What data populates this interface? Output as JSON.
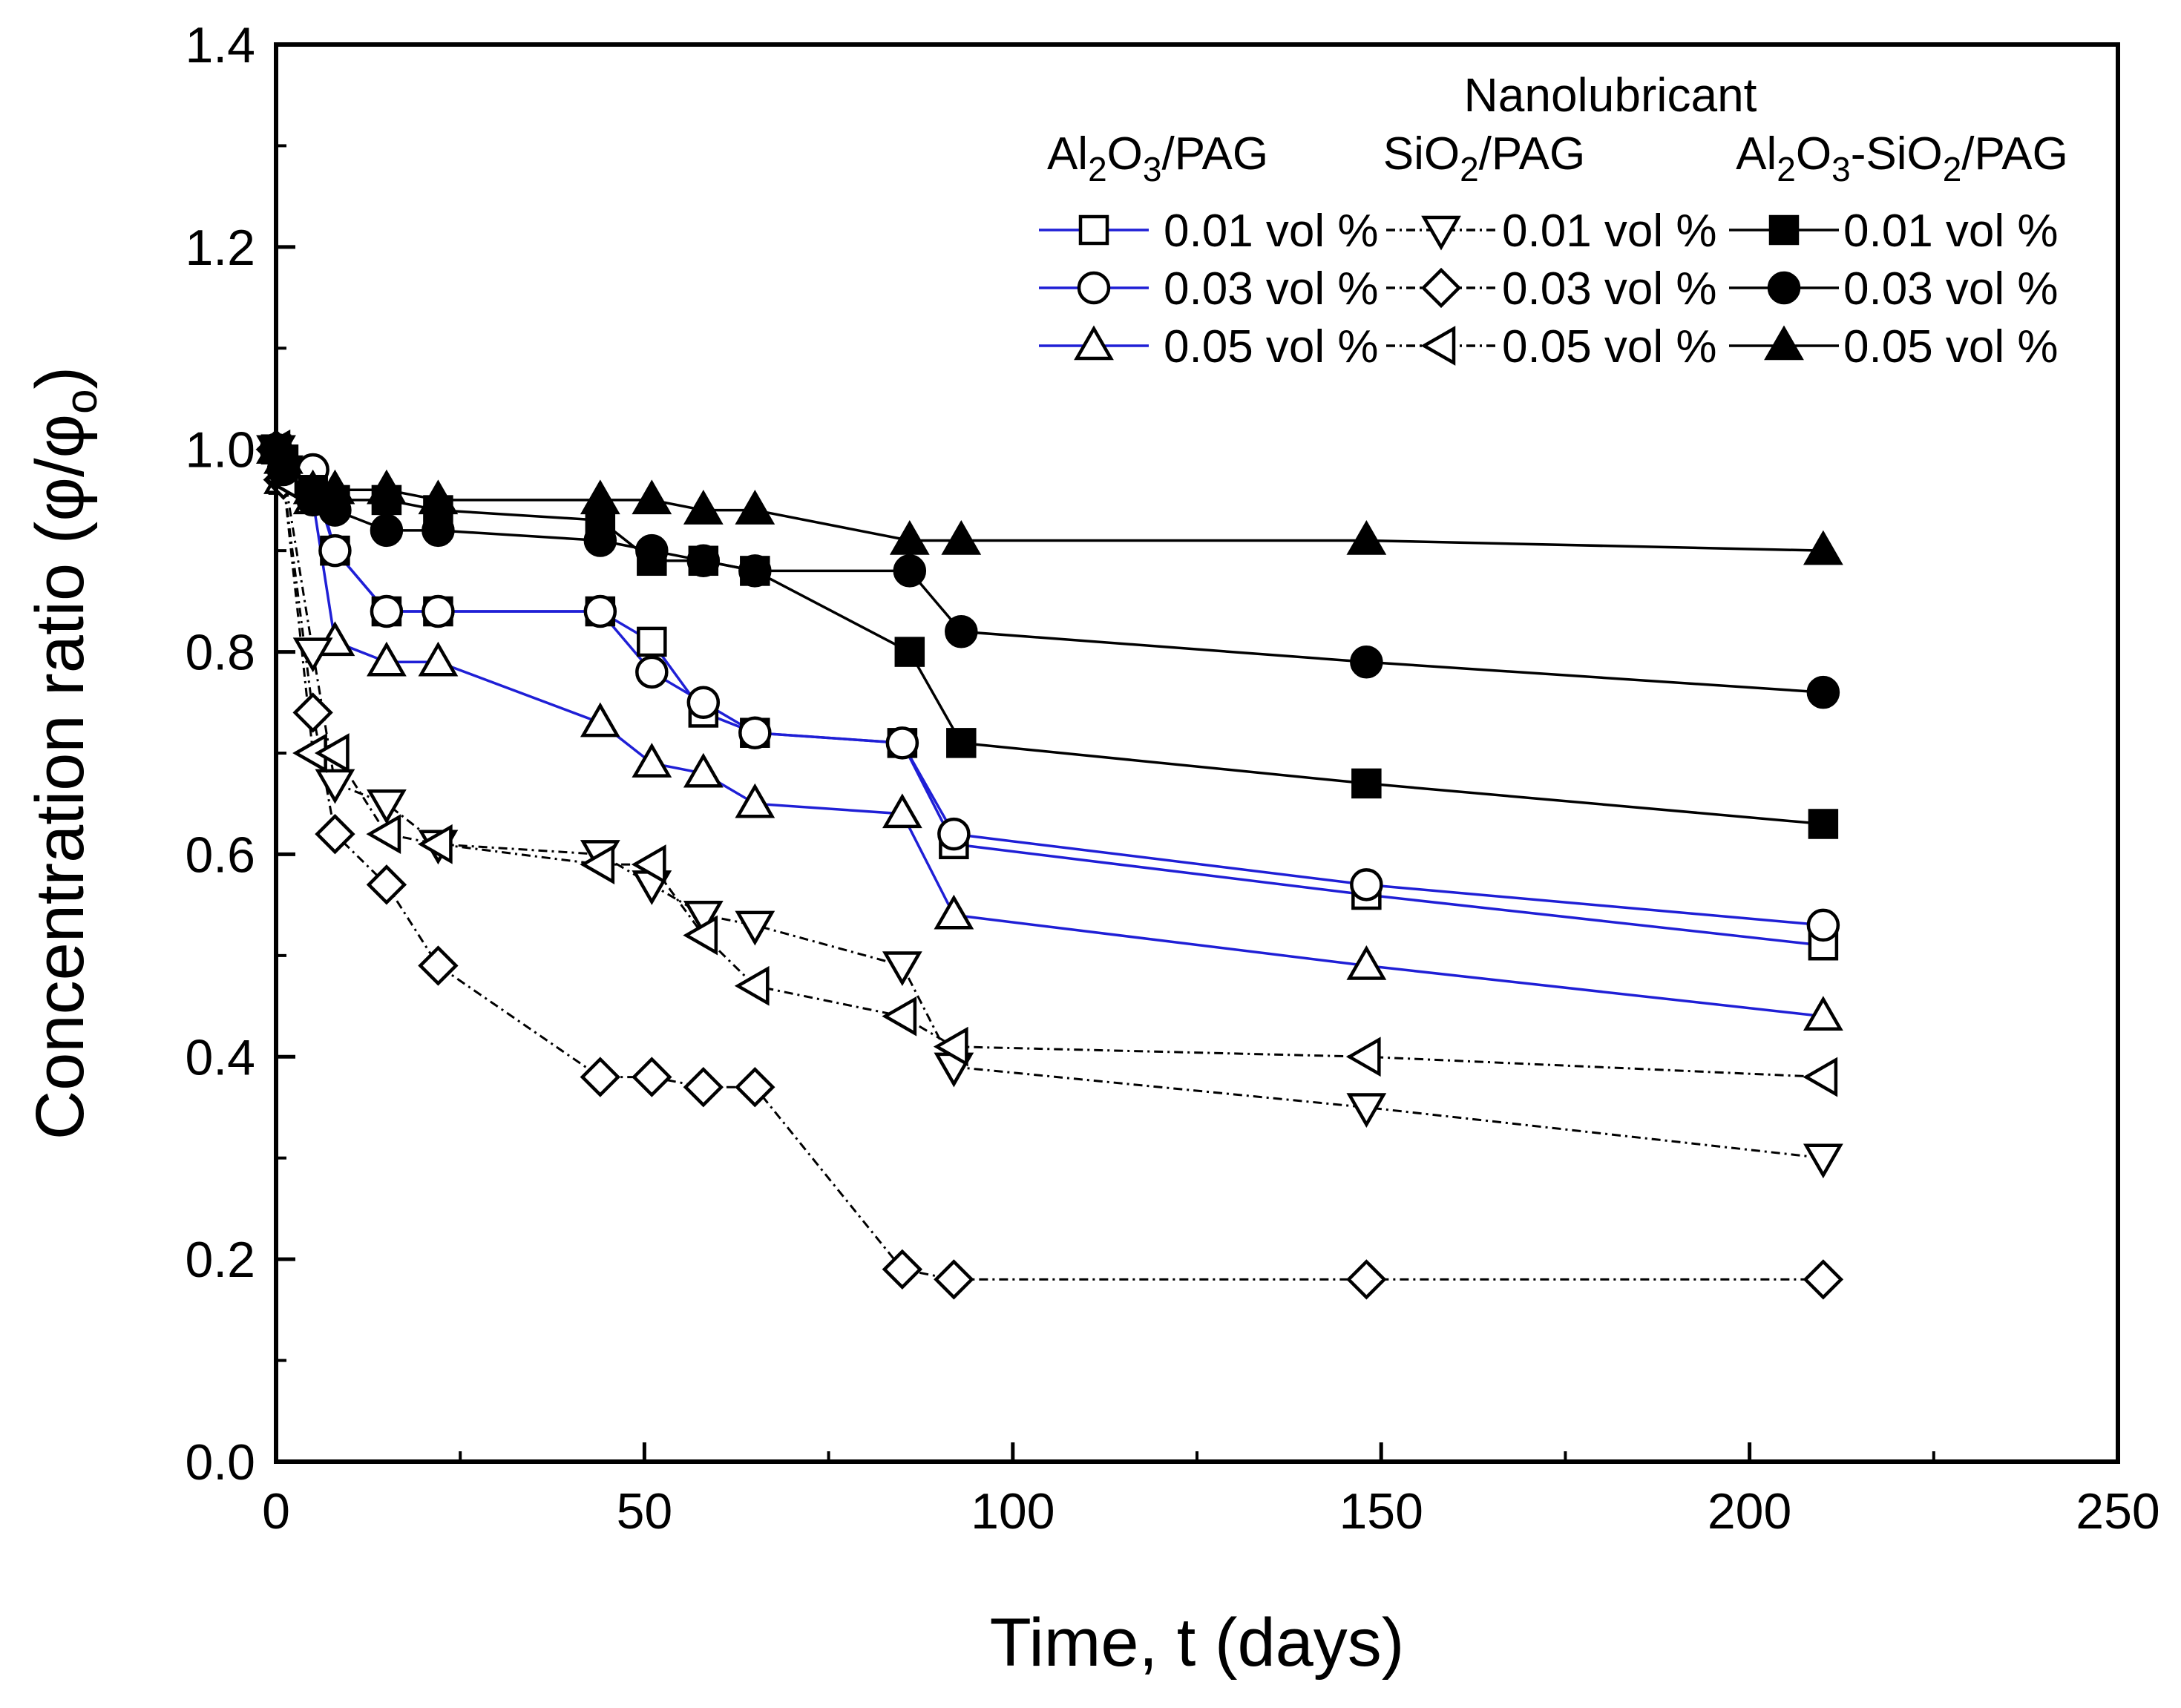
{
  "chart_data": {
    "type": "line",
    "title": "",
    "xlabel": "Time, t (days)",
    "ylabel": "Concentration ratio (φ/φo)",
    "ylabel_parts": {
      "main": "Concentration ratio (φ/φ",
      "sub": "o",
      "end": ")"
    },
    "xlim": [
      0,
      250
    ],
    "ylim": [
      0,
      1.4
    ],
    "x_ticks": [
      "0",
      "50",
      "100",
      "150",
      "200",
      "250"
    ],
    "y_ticks": [
      "0.0",
      "0.2",
      "0.4",
      "0.6",
      "0.8",
      "1.0",
      "1.2",
      "1.4"
    ],
    "grid": false,
    "legend": {
      "title": "Nanolubricant",
      "position": "top-right",
      "groups": [
        {
          "name": "Al2O3/PAG",
          "parts": [
            [
              "Al",
              ""
            ],
            [
              "2",
              "sub"
            ],
            [
              "O",
              ""
            ],
            [
              "3",
              "sub"
            ],
            [
              "/PAG",
              ""
            ]
          ]
        },
        {
          "name": "SiO2/PAG",
          "parts": [
            [
              "SiO",
              ""
            ],
            [
              "2",
              "sub"
            ],
            [
              "/PAG",
              ""
            ]
          ]
        },
        {
          "name": "Al2O3-SiO2/PAG",
          "parts": [
            [
              "Al",
              ""
            ],
            [
              "2",
              "sub"
            ],
            [
              "O",
              ""
            ],
            [
              "3",
              "sub"
            ],
            [
              "-SiO",
              ""
            ],
            [
              "2",
              "sub"
            ],
            [
              "/PAG",
              ""
            ]
          ]
        }
      ]
    },
    "colors": {
      "al2o3_line": "#1f1fd6",
      "sio2_line": "#000000",
      "hybrid_line": "#000000"
    },
    "series": [
      {
        "name": "0.01 vol %",
        "group": "Al2O3/PAG",
        "marker": "square",
        "filled": false,
        "line": "solid",
        "color": "#1f1fd6",
        "x": [
          0,
          1,
          5,
          8,
          15,
          22,
          44,
          51,
          58,
          65,
          85,
          92,
          148,
          210
        ],
        "y": [
          1.0,
          0.97,
          0.97,
          0.9,
          0.84,
          0.84,
          0.84,
          0.81,
          0.74,
          0.72,
          0.71,
          0.61,
          0.56,
          0.51
        ]
      },
      {
        "name": "0.03 vol %",
        "group": "Al2O3/PAG",
        "marker": "circle",
        "filled": false,
        "line": "solid",
        "color": "#1f1fd6",
        "x": [
          0,
          1,
          5,
          8,
          15,
          22,
          44,
          51,
          58,
          65,
          85,
          92,
          148,
          210
        ],
        "y": [
          1.0,
          0.98,
          0.98,
          0.9,
          0.84,
          0.84,
          0.84,
          0.78,
          0.75,
          0.72,
          0.71,
          0.62,
          0.57,
          0.53
        ]
      },
      {
        "name": "0.05 vol %",
        "group": "Al2O3/PAG",
        "marker": "triangle-up",
        "filled": false,
        "line": "solid",
        "color": "#1f1fd6",
        "x": [
          0,
          1,
          5,
          8,
          15,
          22,
          44,
          51,
          58,
          65,
          85,
          92,
          148,
          210
        ],
        "y": [
          1.0,
          0.97,
          0.95,
          0.81,
          0.79,
          0.79,
          0.73,
          0.69,
          0.68,
          0.65,
          0.64,
          0.54,
          0.49,
          0.44
        ]
      },
      {
        "name": "0.01 vol %",
        "group": "SiO2/PAG",
        "marker": "triangle-down",
        "filled": false,
        "line": "dashdot",
        "color": "#000000",
        "x": [
          0,
          1,
          5,
          8,
          15,
          22,
          44,
          51,
          58,
          65,
          85,
          92,
          148,
          210
        ],
        "y": [
          1.0,
          0.98,
          0.8,
          0.67,
          0.65,
          0.61,
          0.6,
          0.57,
          0.54,
          0.53,
          0.49,
          0.39,
          0.35,
          0.3
        ]
      },
      {
        "name": "0.03 vol %",
        "group": "SiO2/PAG",
        "marker": "diamond",
        "filled": false,
        "line": "dashdot",
        "color": "#000000",
        "x": [
          0,
          1,
          5,
          8,
          15,
          22,
          44,
          51,
          58,
          65,
          85,
          92,
          148,
          210
        ],
        "y": [
          1.0,
          0.97,
          0.74,
          0.62,
          0.57,
          0.49,
          0.38,
          0.38,
          0.37,
          0.37,
          0.19,
          0.18,
          0.18,
          0.18
        ]
      },
      {
        "name": "0.05 vol %",
        "group": "SiO2/PAG",
        "marker": "triangle-left",
        "filled": false,
        "line": "dashdot",
        "color": "#000000",
        "x": [
          0,
          1,
          5,
          8,
          15,
          22,
          44,
          51,
          58,
          65,
          85,
          92,
          148,
          210
        ],
        "y": [
          1.0,
          0.97,
          0.7,
          0.7,
          0.62,
          0.61,
          0.59,
          0.59,
          0.52,
          0.47,
          0.44,
          0.41,
          0.4,
          0.38
        ]
      },
      {
        "name": "0.01 vol %",
        "group": "Al2O3-SiO2/PAG",
        "marker": "square",
        "filled": true,
        "line": "solid",
        "color": "#000000",
        "x": [
          0,
          1,
          5,
          8,
          15,
          22,
          44,
          51,
          58,
          65,
          86,
          93,
          148,
          210
        ],
        "y": [
          1.0,
          0.99,
          0.96,
          0.95,
          0.95,
          0.94,
          0.93,
          0.89,
          0.89,
          0.88,
          0.8,
          0.71,
          0.67,
          0.63
        ]
      },
      {
        "name": "0.03 vol %",
        "group": "Al2O3-SiO2/PAG",
        "marker": "circle",
        "filled": true,
        "line": "solid",
        "color": "#000000",
        "x": [
          0,
          1,
          5,
          8,
          15,
          22,
          44,
          51,
          58,
          65,
          86,
          93,
          148,
          210
        ],
        "y": [
          1.0,
          0.98,
          0.95,
          0.94,
          0.92,
          0.92,
          0.91,
          0.9,
          0.89,
          0.88,
          0.88,
          0.82,
          0.79,
          0.76
        ]
      },
      {
        "name": "0.05 vol %",
        "group": "Al2O3-SiO2/PAG",
        "marker": "triangle-up",
        "filled": true,
        "line": "solid",
        "color": "#000000",
        "x": [
          0,
          1,
          5,
          8,
          15,
          22,
          44,
          51,
          58,
          65,
          86,
          93,
          148,
          210
        ],
        "y": [
          1.0,
          0.99,
          0.96,
          0.96,
          0.96,
          0.95,
          0.95,
          0.95,
          0.94,
          0.94,
          0.91,
          0.91,
          0.91,
          0.9
        ]
      }
    ]
  }
}
